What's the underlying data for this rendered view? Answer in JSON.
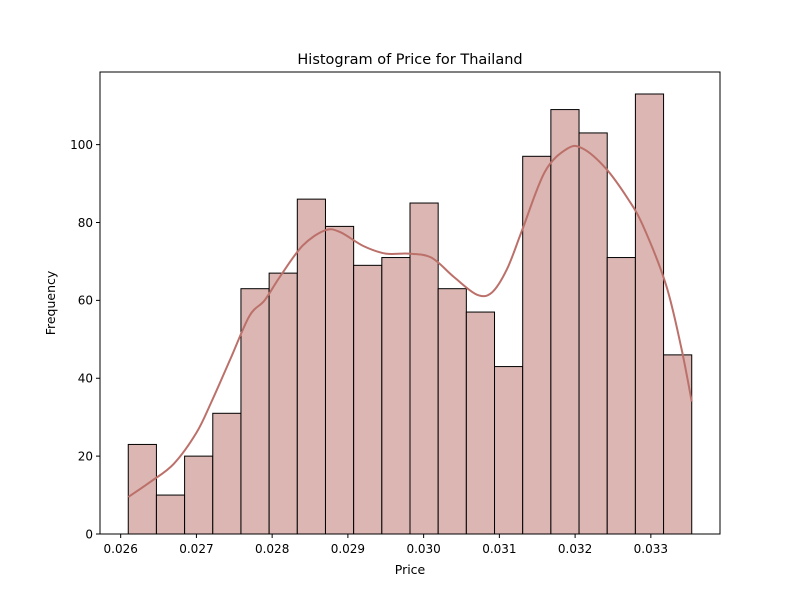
{
  "chart_data": {
    "type": "bar",
    "title": "Histogram of Price for Thailand",
    "xlabel": "Price",
    "ylabel": "Frequency",
    "bin_width": 0.000372,
    "bin_start": 0.0261,
    "bins": [
      {
        "x0": 0.0261,
        "x1": 0.026472,
        "count": 23
      },
      {
        "x0": 0.026472,
        "x1": 0.026844,
        "count": 10
      },
      {
        "x0": 0.026844,
        "x1": 0.027216,
        "count": 20
      },
      {
        "x0": 0.027216,
        "x1": 0.027588,
        "count": 31
      },
      {
        "x0": 0.027588,
        "x1": 0.02796,
        "count": 63
      },
      {
        "x0": 0.02796,
        "x1": 0.028332,
        "count": 67
      },
      {
        "x0": 0.028332,
        "x1": 0.028704,
        "count": 86
      },
      {
        "x0": 0.028704,
        "x1": 0.029076,
        "count": 79
      },
      {
        "x0": 0.029076,
        "x1": 0.029448,
        "count": 69
      },
      {
        "x0": 0.029448,
        "x1": 0.02982,
        "count": 71
      },
      {
        "x0": 0.02982,
        "x1": 0.030192,
        "count": 85
      },
      {
        "x0": 0.030192,
        "x1": 0.030564,
        "count": 63
      },
      {
        "x0": 0.030564,
        "x1": 0.030936,
        "count": 57
      },
      {
        "x0": 0.030936,
        "x1": 0.031308,
        "count": 43
      },
      {
        "x0": 0.031308,
        "x1": 0.03168,
        "count": 97
      },
      {
        "x0": 0.03168,
        "x1": 0.032052,
        "count": 109
      },
      {
        "x0": 0.032052,
        "x1": 0.032424,
        "count": 103
      },
      {
        "x0": 0.032424,
        "x1": 0.032796,
        "count": 71
      },
      {
        "x0": 0.032796,
        "x1": 0.033168,
        "count": 113
      },
      {
        "x0": 0.033168,
        "x1": 0.03354,
        "count": 46
      }
    ],
    "kde": [
      [
        0.0261,
        9.5
      ],
      [
        0.0264,
        13.5
      ],
      [
        0.0267,
        18
      ],
      [
        0.027,
        26
      ],
      [
        0.0272,
        34
      ],
      [
        0.02745,
        45
      ],
      [
        0.0277,
        56
      ],
      [
        0.0279,
        60
      ],
      [
        0.0281,
        66
      ],
      [
        0.0284,
        74
      ],
      [
        0.0287,
        78
      ],
      [
        0.0289,
        77.5
      ],
      [
        0.0292,
        74
      ],
      [
        0.0295,
        72
      ],
      [
        0.0298,
        72
      ],
      [
        0.0301,
        71
      ],
      [
        0.0304,
        66
      ],
      [
        0.0307,
        61.5
      ],
      [
        0.0309,
        62
      ],
      [
        0.0311,
        68
      ],
      [
        0.0313,
        78
      ],
      [
        0.0316,
        93
      ],
      [
        0.0319,
        99
      ],
      [
        0.0321,
        99
      ],
      [
        0.0324,
        94
      ],
      [
        0.0327,
        86
      ],
      [
        0.0329,
        79
      ],
      [
        0.0332,
        64
      ],
      [
        0.0334,
        48
      ],
      [
        0.03354,
        34
      ]
    ],
    "xticks": [
      "0.026",
      "0.027",
      "0.028",
      "0.029",
      "0.030",
      "0.031",
      "0.032",
      "0.033"
    ],
    "xtick_values": [
      0.026,
      0.027,
      0.028,
      0.029,
      0.03,
      0.031,
      0.032,
      0.033
    ],
    "yticks": [
      "0",
      "20",
      "40",
      "60",
      "80",
      "100"
    ],
    "ytick_values": [
      0,
      20,
      40,
      60,
      80,
      100
    ],
    "xlim": [
      0.025727,
      0.033913
    ],
    "ylim": [
      0,
      118.65
    ],
    "grid": false,
    "colors": {
      "bar_fill": "#dbb6b3",
      "bar_edge": "#000000",
      "kde_line": "#bc706a"
    }
  }
}
